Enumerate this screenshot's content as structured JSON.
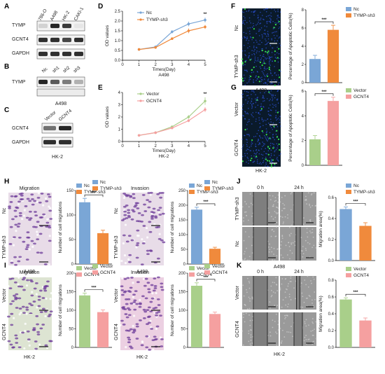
{
  "figure": {
    "colors": {
      "blue": "#7aa6d6",
      "orange": "#f08a3c",
      "green": "#a9cf8a",
      "pink": "#f5a0a0",
      "blot_band": "#1a1a1a",
      "fluor_bg": "#0a1a2a",
      "histo_bg": "#e8dce8",
      "scratch_bg": "#9a9a9a"
    },
    "panel_letters": [
      "A",
      "B",
      "C",
      "D",
      "E",
      "F",
      "G",
      "H",
      "I",
      "J",
      "K"
    ],
    "panel_a": {
      "lanes": [
        "786-O",
        "A498",
        "HK-2",
        "CAKI-1"
      ],
      "proteins": [
        "TYMP",
        "GCNT4",
        "GAPDH"
      ]
    },
    "panel_b": {
      "lanes": [
        "Nc",
        "sh1",
        "sh2",
        "sh3"
      ],
      "proteins": [
        "TYMP"
      ],
      "cell_line": "A498"
    },
    "panel_c": {
      "lanes": [
        "Vector",
        "GCNT4"
      ],
      "proteins": [
        "GCNT4",
        "GAPDH"
      ],
      "cell_line": "HK-2"
    },
    "panel_f_g": {
      "f_rows": [
        "Nc",
        "TYMP-sh3"
      ],
      "f_caption": "A498",
      "g_rows": [
        "Vector",
        "GCNT4"
      ],
      "g_caption": "HK-2"
    },
    "panel_h": {
      "migration_title": "Migration",
      "invasion_title": "Invasion",
      "rows": [
        "Nc",
        "TYMP-sh3"
      ],
      "caption": "A498"
    },
    "panel_i": {
      "migration_title": "Migration",
      "invasion_title": "Invasion",
      "rows": [
        "Vector",
        "GCNT4"
      ],
      "caption": "HK-2"
    },
    "panel_j": {
      "time_labels": [
        "0 h",
        "24 h"
      ],
      "rows": [
        "TYMP-sh3",
        "Nc"
      ],
      "caption": "A498"
    },
    "panel_k": {
      "time_labels": [
        "0 h",
        "24 h"
      ],
      "rows": [
        "Vector",
        "GCNT4"
      ],
      "caption": "HK-2"
    }
  },
  "chart_data": [
    {
      "id": "D",
      "type": "line",
      "x": [
        1,
        2,
        3,
        4,
        5
      ],
      "xlim": [
        0,
        5
      ],
      "ylim": [
        0,
        2.5
      ],
      "xticks": [
        0,
        1,
        2,
        3,
        4,
        5
      ],
      "yticks": [
        0.0,
        0.5,
        1.0,
        1.5,
        2.0,
        2.5
      ],
      "xlabel": "Times(Day)",
      "ylabel": "OD values",
      "caption": "A498",
      "significance": "**",
      "series": [
        {
          "name": "Nc",
          "color": "#7aa6d6",
          "values": [
            0.55,
            0.68,
            1.45,
            1.85,
            2.05
          ],
          "err": [
            0.03,
            0.04,
            0.08,
            0.12,
            0.12
          ]
        },
        {
          "name": "TYMP-sh3",
          "color": "#f08a3c",
          "values": [
            0.55,
            0.65,
            1.1,
            1.5,
            1.7
          ],
          "err": [
            0.03,
            0.04,
            0.06,
            0.12,
            0.1
          ]
        }
      ]
    },
    {
      "id": "E",
      "type": "line",
      "x": [
        1,
        2,
        3,
        4,
        5
      ],
      "xlim": [
        0,
        5
      ],
      "ylim": [
        0,
        4
      ],
      "xticks": [
        0,
        1,
        2,
        3,
        4,
        5
      ],
      "yticks": [
        0,
        1,
        2,
        3,
        4
      ],
      "xlabel": "Times(Day)",
      "ylabel": "OD values",
      "caption": "HK-2",
      "significance": "**",
      "series": [
        {
          "name": "Vector",
          "color": "#a9cf8a",
          "values": [
            0.5,
            0.72,
            1.2,
            2.0,
            3.3
          ],
          "err": [
            0.03,
            0.05,
            0.08,
            0.15,
            0.3
          ]
        },
        {
          "name": "GCNT4",
          "color": "#f5a0a0",
          "values": [
            0.5,
            0.72,
            1.1,
            1.7,
            2.6
          ],
          "err": [
            0.03,
            0.05,
            0.07,
            0.12,
            0.2
          ]
        }
      ]
    },
    {
      "id": "F",
      "type": "bar",
      "categories": [
        "Nc",
        "TYMP-sh3"
      ],
      "values": [
        2.6,
        5.8
      ],
      "err": [
        0.4,
        0.5
      ],
      "colors": [
        "#7aa6d6",
        "#f08a3c"
      ],
      "ylim": [
        0,
        8
      ],
      "yticks": [
        0,
        2,
        4,
        6,
        8
      ],
      "ylabel": "Percentage of Apoptotic Cells(%)",
      "significance": "***"
    },
    {
      "id": "G",
      "type": "bar",
      "categories": [
        "Vector",
        "GCNT4"
      ],
      "values": [
        2.1,
        5.2
      ],
      "err": [
        0.3,
        0.3
      ],
      "colors": [
        "#a9cf8a",
        "#f5a0a0"
      ],
      "ylim": [
        0,
        6
      ],
      "yticks": [
        0,
        2,
        4,
        6
      ],
      "ylabel": "Percentage of Apoptotic Cells(%)",
      "significance": "***"
    },
    {
      "id": "H-migration",
      "type": "bar",
      "categories": [
        "Nc",
        "TYMP-sh3"
      ],
      "values": [
        126,
        63
      ],
      "err": [
        8,
        6
      ],
      "colors": [
        "#7aa6d6",
        "#f08a3c"
      ],
      "ylim": [
        0,
        150
      ],
      "yticks": [
        0,
        50,
        100,
        150
      ],
      "ylabel": "Number of cell migrations",
      "significance": "***"
    },
    {
      "id": "H-invasion",
      "type": "bar",
      "categories": [
        "Nc",
        "TYMP-sh3"
      ],
      "values": [
        185,
        52
      ],
      "err": [
        8,
        5
      ],
      "colors": [
        "#7aa6d6",
        "#f08a3c"
      ],
      "ylim": [
        0,
        250
      ],
      "yticks": [
        0,
        50,
        100,
        150,
        200,
        250
      ],
      "ylabel": "Number of cell migrations",
      "significance": "***"
    },
    {
      "id": "I-migration",
      "type": "bar",
      "categories": [
        "Vector",
        "GCNT4"
      ],
      "values": [
        140,
        95
      ],
      "err": [
        6,
        6
      ],
      "colors": [
        "#a9cf8a",
        "#f5a0a0"
      ],
      "ylim": [
        0,
        200
      ],
      "yticks": [
        0,
        50,
        100,
        150,
        200
      ],
      "ylabel": "Number of cell migrations",
      "significance": "***"
    },
    {
      "id": "I-invasion",
      "type": "bar",
      "categories": [
        "Vector",
        "GCNT4"
      ],
      "values": [
        166,
        90
      ],
      "err": [
        8,
        5
      ],
      "colors": [
        "#a9cf8a",
        "#f5a0a0"
      ],
      "ylim": [
        0,
        200
      ],
      "yticks": [
        0,
        50,
        100,
        150,
        200
      ],
      "ylabel": "Number of cell migrations",
      "significance": "***"
    },
    {
      "id": "J",
      "type": "bar",
      "categories": [
        "Nc",
        "TYMP-sh3"
      ],
      "values": [
        0.49,
        0.33
      ],
      "err": [
        0.02,
        0.03
      ],
      "colors": [
        "#7aa6d6",
        "#f08a3c"
      ],
      "ylim": [
        0,
        0.6
      ],
      "yticks": [
        0.0,
        0.2,
        0.4,
        0.6
      ],
      "ylabel": "Migration area(%)",
      "significance": "***"
    },
    {
      "id": "K",
      "type": "bar",
      "categories": [
        "Vector",
        "GCNT4"
      ],
      "values": [
        0.57,
        0.32
      ],
      "err": [
        0.02,
        0.03
      ],
      "colors": [
        "#a9cf8a",
        "#f5a0a0"
      ],
      "ylim": [
        0,
        0.8
      ],
      "yticks": [
        0.0,
        0.2,
        0.4,
        0.6,
        0.8
      ],
      "ylabel": "Migration area(%)",
      "significance": "***"
    }
  ]
}
